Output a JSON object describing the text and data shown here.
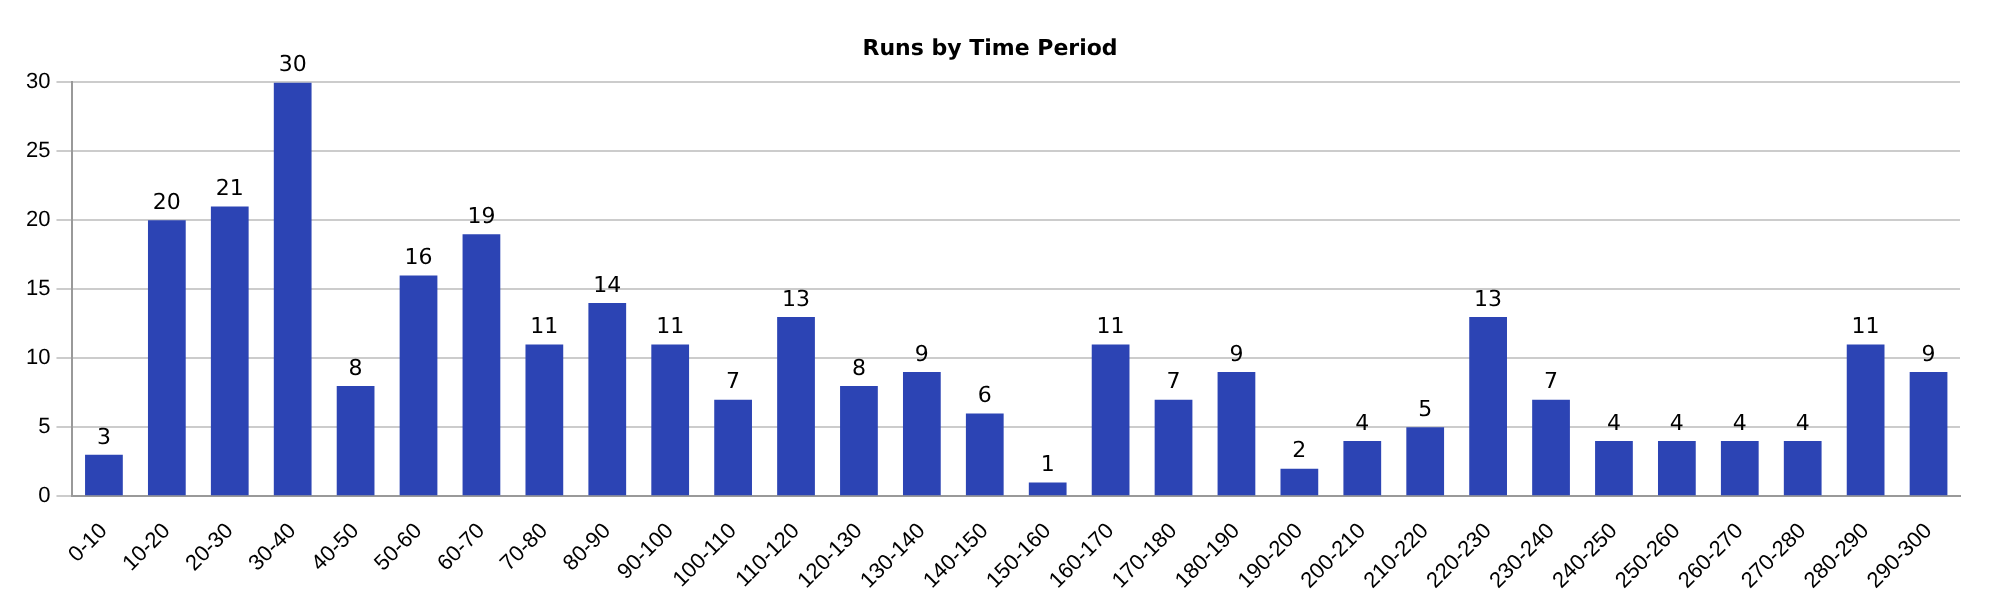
{
  "chart_data": {
    "type": "bar",
    "title": "Runs by Time Period",
    "categories": [
      "0-10",
      "10-20",
      "20-30",
      "30-40",
      "40-50",
      "50-60",
      "60-70",
      "70-80",
      "80-90",
      "90-100",
      "100-110",
      "110-120",
      "120-130",
      "130-140",
      "140-150",
      "150-160",
      "160-170",
      "170-180",
      "180-190",
      "190-200",
      "200-210",
      "210-220",
      "220-230",
      "230-240",
      "240-250",
      "250-260",
      "260-270",
      "270-280",
      "280-290",
      "290-300"
    ],
    "values": [
      3,
      20,
      21,
      30,
      8,
      16,
      19,
      11,
      14,
      11,
      7,
      13,
      8,
      9,
      6,
      1,
      11,
      7,
      9,
      2,
      4,
      5,
      13,
      7,
      4,
      4,
      4,
      4,
      11,
      9
    ],
    "color": "#2c44b4",
    "ylim": [
      0,
      30
    ],
    "yticks": [
      0,
      5,
      10,
      15,
      20,
      25,
      30
    ],
    "grid": "y",
    "data_labels": true
  }
}
